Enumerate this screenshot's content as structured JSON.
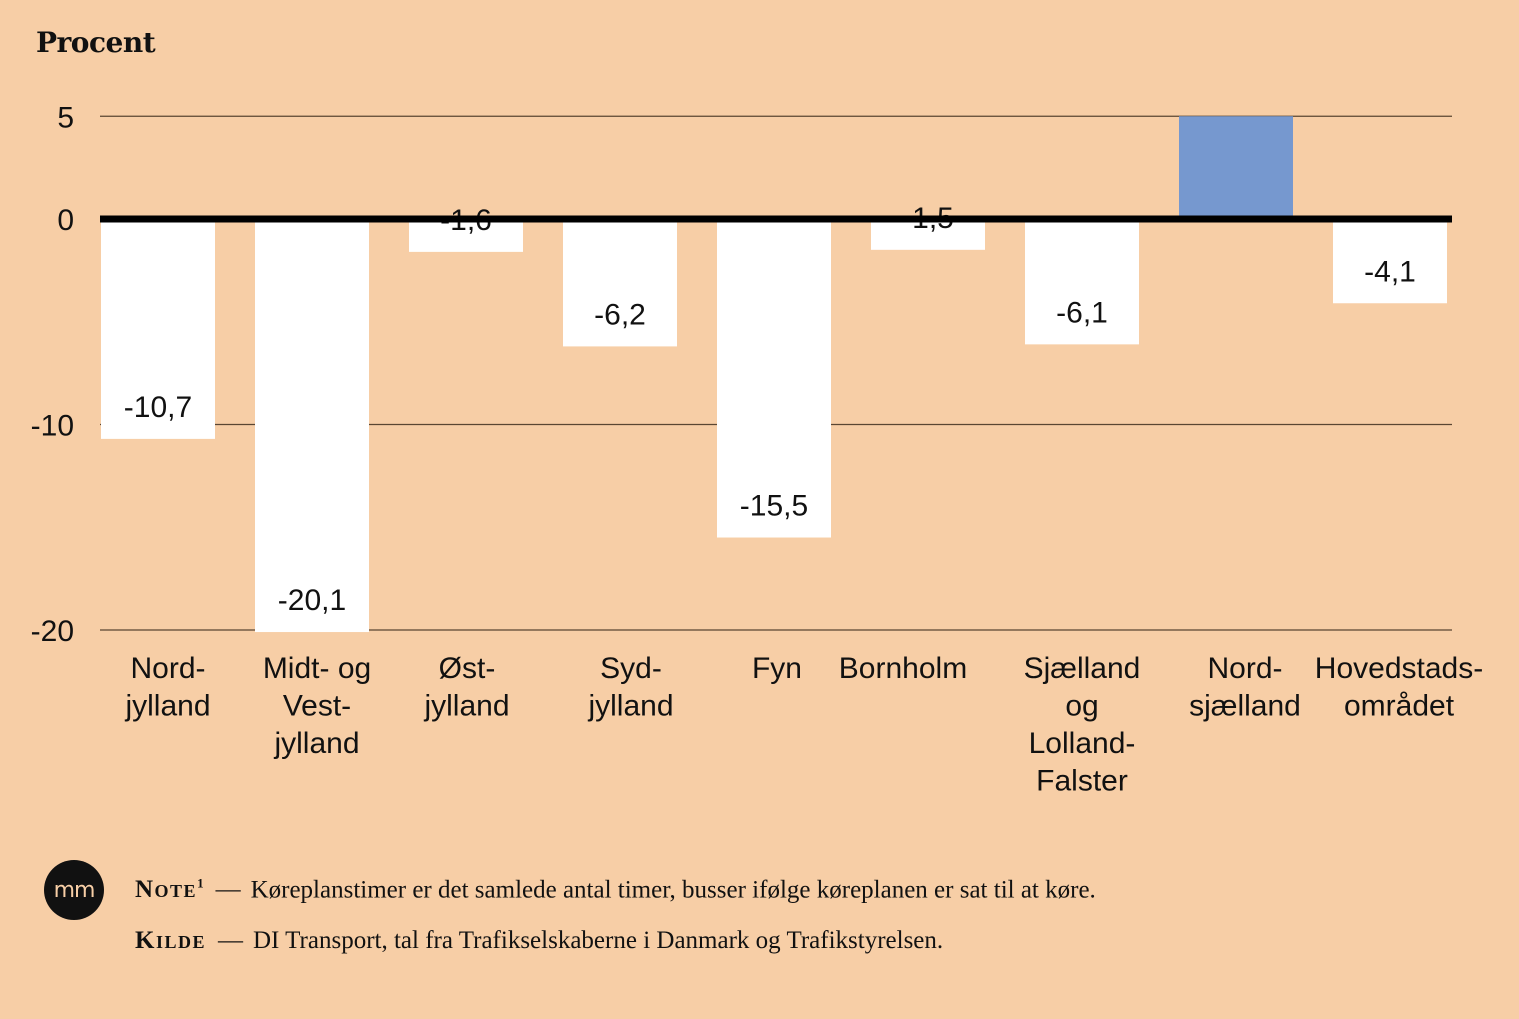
{
  "chart_data": {
    "type": "bar",
    "ylabel": "Procent",
    "ylim": [
      -20,
      5
    ],
    "yticks": [
      5,
      0,
      -10,
      -20
    ],
    "ytick_labels": [
      "5",
      "0",
      "-10",
      "-20"
    ],
    "grid": true,
    "categories": [
      [
        "Nord-",
        "jylland"
      ],
      [
        "Midt- og",
        "Vest-",
        "jylland"
      ],
      [
        "Øst-",
        "jylland"
      ],
      [
        "Syd-",
        "jylland"
      ],
      [
        "Fyn"
      ],
      [
        "Bornholm"
      ],
      [
        "Sjælland",
        "og",
        "Lolland-",
        "Falster"
      ],
      [
        "Nord-",
        "sjælland"
      ],
      [
        "Hovedstads-",
        "området"
      ]
    ],
    "values": [
      -10.7,
      -20.1,
      -1.6,
      -6.2,
      -15.5,
      -1.5,
      -6.1,
      5,
      -4.1
    ],
    "value_labels": [
      "-10,7",
      "-20,1",
      "-1,6",
      "-6,2",
      "-15,5",
      "-1,5",
      "-6,1",
      "",
      "-4,1"
    ],
    "colors": {
      "negative": "#ffffff",
      "positive": "#7698cf",
      "zero_line": "#000000",
      "grid": "#5a4632"
    }
  },
  "footer": {
    "logo_text": "mm",
    "note_label": "Note",
    "note_sup": "1",
    "note_text": "Køreplanstimer er det samlede antal timer, busser ifølge køreplanen er sat til at køre.",
    "source_label": "Kilde",
    "source_text": "DI Transport, tal fra Trafikselskaberne i Danmark og Trafikstyrelsen.",
    "dash": "—"
  }
}
